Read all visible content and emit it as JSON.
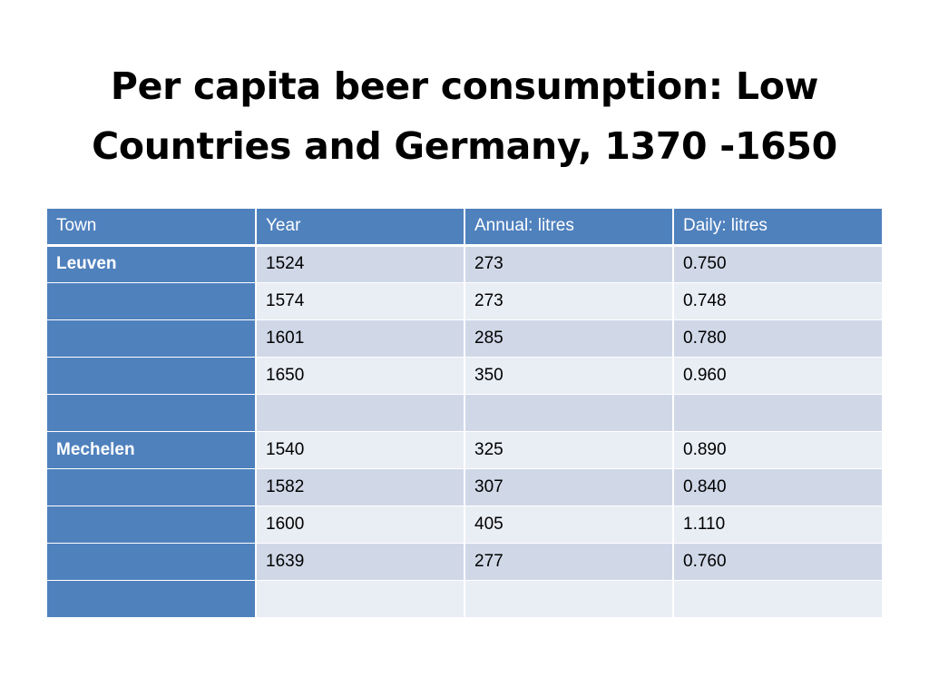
{
  "slide": {
    "title_line1": "Per capita beer consumption: Low",
    "title_line2": "Countries and Germany, 1370 -1650"
  },
  "table": {
    "headers": [
      "Town",
      "Year",
      "Annual: litres",
      "Daily: litres"
    ],
    "rows": [
      {
        "town": "Leuven",
        "year": "1524",
        "annual": "273",
        "daily": "0.750"
      },
      {
        "town": "",
        "year": "1574",
        "annual": "273",
        "daily": "0.748"
      },
      {
        "town": "",
        "year": "1601",
        "annual": "285",
        "daily": "0.780"
      },
      {
        "town": "",
        "year": "1650",
        "annual": "350",
        "daily": "0.960"
      },
      {
        "town": "",
        "year": "",
        "annual": "",
        "daily": ""
      },
      {
        "town": "Mechelen",
        "year": "1540",
        "annual": "325",
        "daily": "0.890"
      },
      {
        "town": "",
        "year": "1582",
        "annual": "307",
        "daily": "0.840"
      },
      {
        "town": "",
        "year": "1600",
        "annual": "405",
        "daily": "1.110"
      },
      {
        "town": "",
        "year": "1639",
        "annual": "277",
        "daily": "0.760"
      },
      {
        "town": "",
        "year": "",
        "annual": "",
        "daily": ""
      }
    ]
  },
  "colors": {
    "header_blue": "#4f81bd",
    "band_dark": "#d0d8e8",
    "band_light": "#e9edf4"
  }
}
